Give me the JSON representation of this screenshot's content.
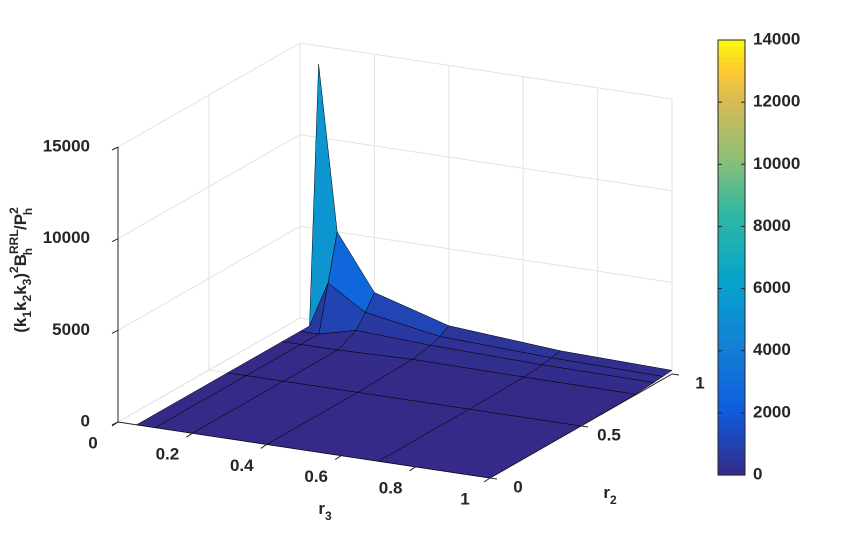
{
  "chart_data": {
    "type": "surface",
    "xlabel": [
      "r",
      "3"
    ],
    "ylabel": [
      "r",
      "2"
    ],
    "zlabel": [
      "(k",
      "1",
      "k",
      "2",
      "k",
      "3",
      ")",
      "2",
      "B",
      "RRL",
      "h",
      "/P",
      "2",
      "h"
    ],
    "x": [
      0.05,
      0.1,
      0.2,
      0.4,
      0.7,
      1.0
    ],
    "y": [
      0,
      0.5,
      0.8,
      0.9,
      0.95,
      1.0
    ],
    "z": [
      [
        0,
        0,
        0,
        0,
        0,
        0
      ],
      [
        0,
        0,
        0,
        0,
        0,
        0
      ],
      [
        0,
        0,
        0,
        100,
        50,
        30
      ],
      [
        0,
        0,
        500,
        300,
        150,
        100
      ],
      [
        0,
        2500,
        1200,
        500,
        250,
        150
      ],
      [
        14000,
        5000,
        2000,
        800,
        350,
        200
      ]
    ],
    "xlim": [
      0,
      1
    ],
    "xticks": [
      0,
      0.2,
      0.4,
      0.6,
      0.8,
      1
    ],
    "ylim": [
      0,
      1
    ],
    "yticks": [
      0,
      0.5,
      1
    ],
    "zlim": [
      0,
      15000
    ],
    "zticks": [
      0,
      5000,
      10000,
      15000
    ],
    "clim": [
      0,
      14000
    ],
    "cticks": [
      0,
      2000,
      4000,
      6000,
      8000,
      10000,
      12000,
      14000
    ],
    "colormap": "parula",
    "edge_color": "#000000",
    "grid": true
  }
}
